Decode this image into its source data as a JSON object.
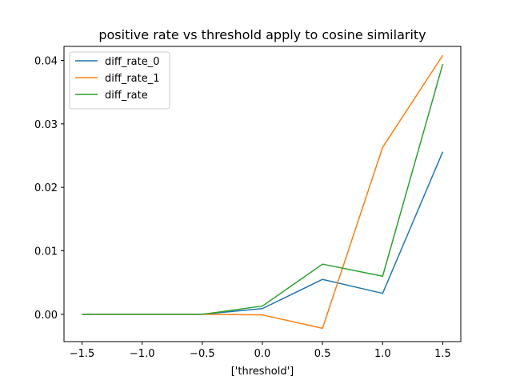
{
  "chart_data": {
    "type": "line",
    "title": "positive rate vs threshold apply to cosine similarity",
    "xlabel": "['threshold']",
    "ylabel": "",
    "x": [
      -1.5,
      -1.0,
      -0.5,
      0.0,
      0.5,
      1.0,
      1.5
    ],
    "xticks": [
      -1.5,
      -1.0,
      -0.5,
      0.0,
      0.5,
      1.0,
      1.5
    ],
    "xtick_labels": [
      "−1.5",
      "−1.0",
      "−0.5",
      "0.0",
      "0.5",
      "1.0",
      "1.5"
    ],
    "yticks": [
      0.0,
      0.01,
      0.02,
      0.03,
      0.04
    ],
    "ytick_labels": [
      "0.00",
      "0.01",
      "0.02",
      "0.03",
      "0.04"
    ],
    "xlim": [
      -1.65,
      1.65
    ],
    "ylim": [
      -0.0043,
      0.0422
    ],
    "grid": false,
    "legend_position": "upper left",
    "series": [
      {
        "name": "diff_rate_0",
        "color": "#1f77b4",
        "x": [
          -1.5,
          -0.5,
          0.0,
          0.5,
          1.0,
          1.5
        ],
        "values": [
          0.0,
          0.0,
          0.0009,
          0.0055,
          0.0033,
          0.0256
        ]
      },
      {
        "name": "diff_rate_1",
        "color": "#ff7f0e",
        "x": [
          -1.5,
          -0.5,
          0.0,
          0.5,
          1.0,
          1.5
        ],
        "values": [
          0.0,
          0.0,
          -0.0001,
          -0.0022,
          0.0263,
          0.0408
        ]
      },
      {
        "name": "diff_rate",
        "color": "#2ca02c",
        "x": [
          -1.5,
          -0.5,
          0.0,
          0.5,
          1.0,
          1.5
        ],
        "values": [
          0.0,
          0.0,
          0.0013,
          0.0079,
          0.006,
          0.0394
        ]
      }
    ]
  }
}
